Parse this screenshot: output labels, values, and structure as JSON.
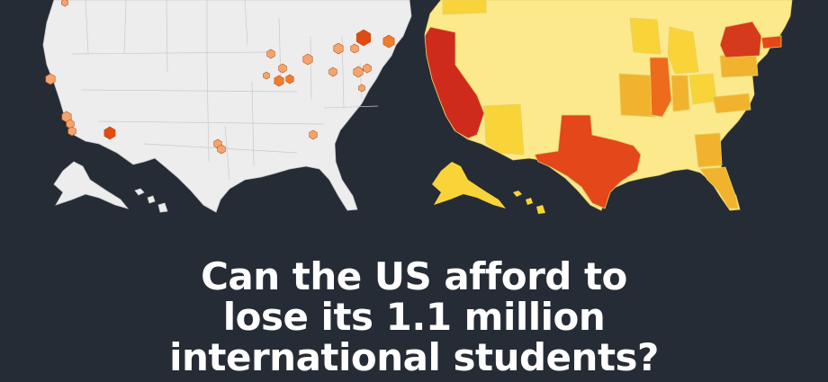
{
  "headline": {
    "line1": "Can the US afford to",
    "line2": "lose its 1.1 million",
    "line3": "international students?"
  },
  "colors": {
    "background": "#262c36",
    "left_map_fill": "#ededed",
    "left_map_border": "#c9c9c9",
    "marker_light": "#f4a46c",
    "marker_mid": "#ef7d2a",
    "marker_dark": "#e24a13",
    "heat_pale": "#fbe98c",
    "heat_yellow": "#f8d439",
    "heat_gold": "#f1b32d",
    "heat_orange": "#ef6b1c",
    "heat_orange_red": "#e4471a",
    "heat_red": "#cf2b1c"
  },
  "maps": [
    {
      "kind": "point-markers",
      "marker": "hexagon"
    },
    {
      "kind": "state-heatmap"
    }
  ]
}
